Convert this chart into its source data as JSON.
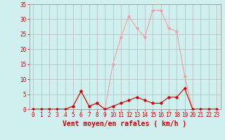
{
  "x_avg": [
    0,
    1,
    2,
    3,
    4,
    5,
    6,
    7,
    8,
    9,
    10,
    11,
    12,
    13,
    14,
    15,
    16,
    17,
    18,
    19,
    20,
    21,
    22,
    23
  ],
  "y_avg": [
    0,
    0,
    0,
    0,
    0,
    1,
    6,
    1,
    2,
    0,
    1,
    2,
    3,
    4,
    3,
    2,
    2,
    4,
    4,
    7,
    0,
    0,
    0,
    0
  ],
  "x_gust": [
    0,
    1,
    2,
    3,
    4,
    5,
    6,
    7,
    8,
    9,
    10,
    11,
    12,
    13,
    14,
    15,
    16,
    17,
    18,
    19,
    20,
    21,
    22,
    23
  ],
  "y_gust": [
    0,
    0,
    0,
    0,
    0,
    1,
    6,
    1,
    2,
    0,
    15,
    24,
    31,
    27,
    24,
    33,
    33,
    27,
    26,
    11,
    0,
    0,
    0,
    0
  ],
  "color_avg": "#cc0000",
  "color_gust": "#f0a0a0",
  "bg_color": "#cff0ee",
  "grid_color": "#b8b8b8",
  "xlabel": "Vent moyen/en rafales ( km/h )",
  "xlim": [
    -0.5,
    23.5
  ],
  "ylim": [
    0,
    35
  ],
  "yticks": [
    0,
    5,
    10,
    15,
    20,
    25,
    30,
    35
  ],
  "xticks": [
    0,
    1,
    2,
    3,
    4,
    5,
    6,
    7,
    8,
    9,
    10,
    11,
    12,
    13,
    14,
    15,
    16,
    17,
    18,
    19,
    20,
    21,
    22,
    23
  ],
  "tick_color": "#cc0000",
  "tick_fontsize": 5.5,
  "xlabel_fontsize": 7,
  "marker_size": 2.5,
  "linewidth": 0.8
}
